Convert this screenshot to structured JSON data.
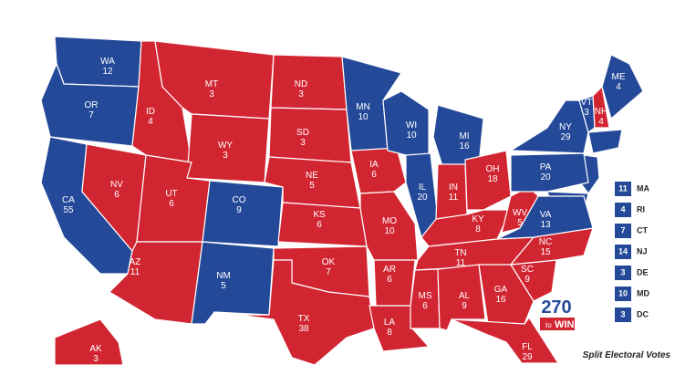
{
  "states": [
    {
      "abbr": "WA",
      "votes": "12",
      "color": "#244999"
    },
    {
      "abbr": "OR",
      "votes": "7",
      "color": "#244999"
    },
    {
      "abbr": "CA",
      "votes": "55",
      "color": "#244999"
    },
    {
      "abbr": "NV",
      "votes": "6",
      "color": "#d22532"
    },
    {
      "abbr": "ID",
      "votes": "4",
      "color": "#d22532"
    },
    {
      "abbr": "MT",
      "votes": "3",
      "color": "#d22532"
    },
    {
      "abbr": "WY",
      "votes": "3",
      "color": "#d22532"
    },
    {
      "abbr": "UT",
      "votes": "6",
      "color": "#d22532"
    },
    {
      "abbr": "AZ",
      "votes": "11",
      "color": "#d22532"
    },
    {
      "abbr": "CO",
      "votes": "9",
      "color": "#244999"
    },
    {
      "abbr": "NM",
      "votes": "5",
      "color": "#244999"
    },
    {
      "abbr": "ND",
      "votes": "3",
      "color": "#d22532"
    },
    {
      "abbr": "SD",
      "votes": "3",
      "color": "#d22532"
    },
    {
      "abbr": "NE",
      "votes": "5",
      "color": "#d22532"
    },
    {
      "abbr": "KS",
      "votes": "6",
      "color": "#d22532"
    },
    {
      "abbr": "OK",
      "votes": "7",
      "color": "#d22532"
    },
    {
      "abbr": "TX",
      "votes": "38",
      "color": "#d22532"
    },
    {
      "abbr": "MN",
      "votes": "10",
      "color": "#244999"
    },
    {
      "abbr": "IA",
      "votes": "6",
      "color": "#d22532"
    },
    {
      "abbr": "MO",
      "votes": "10",
      "color": "#d22532"
    },
    {
      "abbr": "AR",
      "votes": "6",
      "color": "#d22532"
    },
    {
      "abbr": "LA",
      "votes": "8",
      "color": "#d22532"
    },
    {
      "abbr": "WI",
      "votes": "10",
      "color": "#244999"
    },
    {
      "abbr": "IL",
      "votes": "20",
      "color": "#244999"
    },
    {
      "abbr": "MI",
      "votes": "16",
      "color": "#244999"
    },
    {
      "abbr": "IN",
      "votes": "11",
      "color": "#d22532"
    },
    {
      "abbr": "OH",
      "votes": "18",
      "color": "#d22532"
    },
    {
      "abbr": "KY",
      "votes": "8",
      "color": "#d22532"
    },
    {
      "abbr": "TN",
      "votes": "11",
      "color": "#d22532"
    },
    {
      "abbr": "MS",
      "votes": "6",
      "color": "#d22532"
    },
    {
      "abbr": "AL",
      "votes": "9",
      "color": "#d22532"
    },
    {
      "abbr": "GA",
      "votes": "16",
      "color": "#d22532"
    },
    {
      "abbr": "FL",
      "votes": "29",
      "color": "#d22532"
    },
    {
      "abbr": "SC",
      "votes": "9",
      "color": "#d22532"
    },
    {
      "abbr": "NC",
      "votes": "15",
      "color": "#d22532"
    },
    {
      "abbr": "VA",
      "votes": "13",
      "color": "#244999"
    },
    {
      "abbr": "WV",
      "votes": "5",
      "color": "#d22532"
    },
    {
      "abbr": "PA",
      "votes": "20",
      "color": "#244999"
    },
    {
      "abbr": "NY",
      "votes": "29",
      "color": "#244999"
    },
    {
      "abbr": "VT",
      "votes": "3",
      "color": "#244999"
    },
    {
      "abbr": "NH",
      "votes": "4",
      "color": "#d22532"
    },
    {
      "abbr": "ME",
      "votes": "4",
      "color": "#244999"
    },
    {
      "abbr": "AK",
      "votes": "3",
      "color": "#d22532"
    }
  ],
  "small_states": [
    {
      "abbr": "MA",
      "votes": "11",
      "color": "#244999"
    },
    {
      "abbr": "RI",
      "votes": "4",
      "color": "#244999"
    },
    {
      "abbr": "CT",
      "votes": "7",
      "color": "#244999"
    },
    {
      "abbr": "NJ",
      "votes": "14",
      "color": "#244999"
    },
    {
      "abbr": "DE",
      "votes": "3",
      "color": "#244999"
    },
    {
      "abbr": "MD",
      "votes": "10",
      "color": "#244999"
    },
    {
      "abbr": "DC",
      "votes": "3",
      "color": "#244999"
    }
  ],
  "logo": {
    "number": "270",
    "to": "to",
    "win": "WIN"
  },
  "footnote": "Split Electoral Votes"
}
